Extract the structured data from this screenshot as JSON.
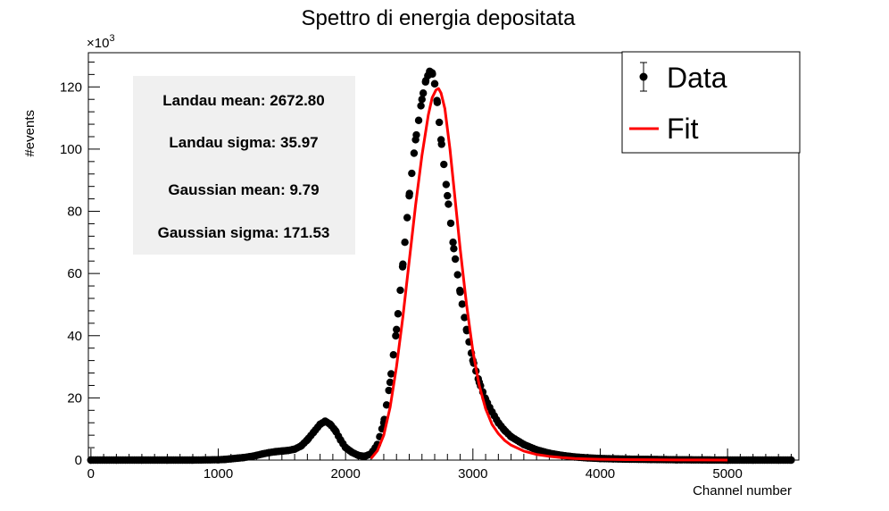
{
  "chart_data": {
    "type": "scatter",
    "title": "Spettro di energia depositata",
    "xlabel": "Channel number",
    "ylabel": "#events",
    "y_multiplier": "×10",
    "y_multiplier_exp": "3",
    "xlim": [
      -20,
      5560
    ],
    "ylim": [
      0,
      131
    ],
    "x_ticks": [
      0,
      1000,
      2000,
      3000,
      4000,
      5000
    ],
    "x_tick_labels": [
      "0",
      "1000",
      "2000",
      "3000",
      "4000",
      "5000"
    ],
    "y_ticks": [
      0,
      20,
      40,
      60,
      80,
      100,
      120
    ],
    "y_tick_labels": [
      "0",
      "20",
      "40",
      "60",
      "80",
      "100",
      "120"
    ],
    "grid": false,
    "series": [
      {
        "name": "Data",
        "kind": "points",
        "color": "#000000",
        "x": [
          0,
          200,
          400,
          600,
          800,
          1000,
          1050,
          1100,
          1150,
          1200,
          1250,
          1300,
          1350,
          1400,
          1450,
          1500,
          1550,
          1600,
          1650,
          1700,
          1750,
          1800,
          1840,
          1880,
          1920,
          1960,
          2000,
          2050,
          2100,
          2150,
          2200,
          2250,
          2300,
          2350,
          2400,
          2450,
          2500,
          2550,
          2600,
          2630,
          2660,
          2680,
          2700,
          2720,
          2750,
          2800,
          2850,
          2900,
          2950,
          3000,
          3050,
          3100,
          3150,
          3200,
          3250,
          3300,
          3400,
          3500,
          3600,
          3700,
          3800,
          3900,
          4000,
          4100,
          4200,
          4400,
          4600,
          4800,
          5000,
          5200,
          5400,
          5500
        ],
        "y": [
          0,
          0,
          0,
          0,
          0,
          0.1,
          0.2,
          0.4,
          0.6,
          0.8,
          1.1,
          1.5,
          2.0,
          2.4,
          2.7,
          2.9,
          3.1,
          3.5,
          4.5,
          6.5,
          9.0,
          11.5,
          12.5,
          11.5,
          9.5,
          6.5,
          4.0,
          2.5,
          1.5,
          1.2,
          2.0,
          5.0,
          12.0,
          25.0,
          42.0,
          63.0,
          85.0,
          103.0,
          116.0,
          122.0,
          125.0,
          124.5,
          121.0,
          115.0,
          103.0,
          85.0,
          68.0,
          54.0,
          42.0,
          32.0,
          25.0,
          19.5,
          15.5,
          12.0,
          9.5,
          7.5,
          5.0,
          3.3,
          2.2,
          1.5,
          1.0,
          0.7,
          0.5,
          0.4,
          0.3,
          0.2,
          0.1,
          0.05,
          0,
          0,
          0,
          0
        ]
      },
      {
        "name": "Fit",
        "kind": "line",
        "color": "#ff0000",
        "x": [
          2200,
          2250,
          2300,
          2350,
          2400,
          2450,
          2500,
          2550,
          2600,
          2650,
          2680,
          2710,
          2730,
          2750,
          2780,
          2820,
          2860,
          2900,
          2950,
          3000,
          3050,
          3100,
          3150,
          3200,
          3250,
          3300,
          3400,
          3500,
          3600,
          3700,
          3800,
          3900,
          4000,
          4100,
          4200,
          4400,
          4600,
          4800,
          5000
        ],
        "y": [
          0.5,
          3.0,
          8.0,
          17.0,
          30.0,
          46.0,
          64.0,
          82.0,
          98.0,
          111.0,
          116.5,
          119.0,
          119.5,
          118.0,
          113.0,
          100.0,
          84.0,
          68.0,
          50.0,
          35.0,
          24.0,
          16.5,
          11.5,
          8.5,
          6.3,
          4.8,
          2.9,
          1.8,
          1.2,
          0.8,
          0.5,
          0.35,
          0.25,
          0.2,
          0.15,
          0.1,
          0.05,
          0.02,
          0
        ]
      }
    ],
    "stats": {
      "landau_mean": "Landau mean: 2672.80",
      "landau_sigma": "Landau sigma: 35.97",
      "gaussian_mean": "Gaussian mean: 9.79",
      "gaussian_sigma": "Gaussian sigma: 171.53"
    },
    "legend": {
      "placement": "top-right",
      "entries": [
        {
          "label": "Data",
          "marker": "point-with-errorbar"
        },
        {
          "label": "Fit",
          "marker": "line"
        }
      ]
    }
  }
}
